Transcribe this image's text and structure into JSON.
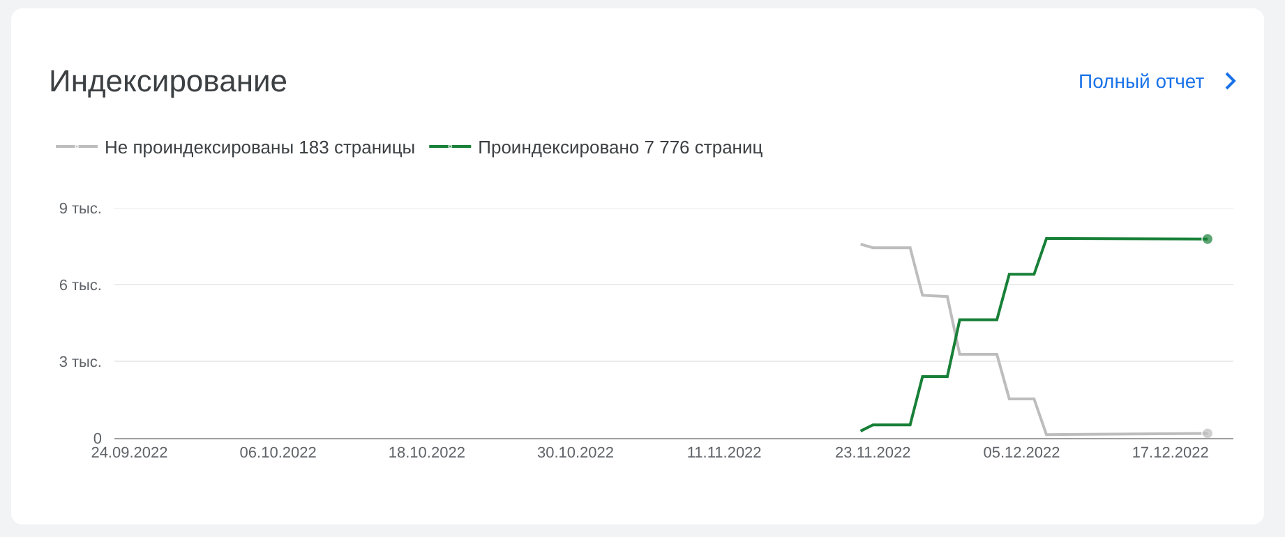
{
  "chart_data": {
    "type": "line",
    "title": "Индексирование",
    "annotations": [
      "Полный отчет"
    ],
    "xlim": [
      "2022-09-22T19:00",
      "2022-12-22T02:00"
    ],
    "xticks": [
      {
        "value": "2022-09-24",
        "label": "24.09.2022"
      },
      {
        "value": "2022-10-06",
        "label": "06.10.2022"
      },
      {
        "value": "2022-10-18",
        "label": "18.10.2022"
      },
      {
        "value": "2022-10-30",
        "label": "30.10.2022"
      },
      {
        "value": "2022-11-11",
        "label": "11.11.2022"
      },
      {
        "value": "2022-11-23",
        "label": "23.11.2022"
      },
      {
        "value": "2022-12-05",
        "label": "05.12.2022"
      },
      {
        "value": "2022-12-17",
        "label": "17.12.2022"
      }
    ],
    "ylim": [
      0,
      9
    ],
    "yticks": [
      0,
      {
        "value": 3,
        "label": "3 тыс."
      },
      {
        "value": 6,
        "label": "6 тыс."
      },
      {
        "value": 9,
        "label": "9 тыс."
      }
    ],
    "grid": "y",
    "legend": "top left",
    "series": [
      {
        "name": "Не проиндексированы 183 страницы",
        "color": "#bdbdbd",
        "x": [
          "2022-11-22",
          "2022-11-23",
          "2022-11-26",
          "2022-11-27",
          "2022-11-29",
          "2022-11-30",
          "2022-12-03",
          "2022-12-04",
          "2022-12-06",
          "2022-12-07",
          "2022-12-20"
        ],
        "values": [
          7.58,
          7.44,
          7.44,
          5.58,
          5.53,
          3.27,
          3.27,
          1.53,
          1.53,
          0.13,
          0.18
        ]
      },
      {
        "name": "Проиндексировано 7 776 страниц",
        "color": "#188038",
        "x": [
          "2022-11-22",
          "2022-11-23",
          "2022-11-26",
          "2022-11-27",
          "2022-11-29",
          "2022-11-30",
          "2022-12-03",
          "2022-12-04",
          "2022-12-06",
          "2022-12-07",
          "2022-12-20"
        ],
        "values": [
          0.27,
          0.51,
          0.51,
          2.4,
          2.4,
          4.62,
          4.62,
          6.4,
          6.4,
          7.8,
          7.78
        ]
      }
    ]
  }
}
